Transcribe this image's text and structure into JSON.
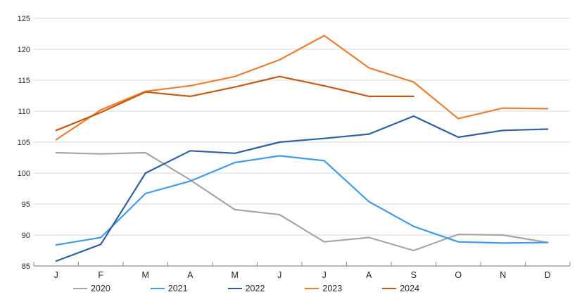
{
  "chart_data": {
    "type": "line",
    "title": "",
    "xlabel": "",
    "ylabel": "",
    "categories": [
      "J",
      "F",
      "M",
      "A",
      "M",
      "J",
      "J",
      "A",
      "S",
      "O",
      "N",
      "D"
    ],
    "series": [
      {
        "name": "2020",
        "color": "#A6A6A6",
        "values": [
          103.3,
          103.1,
          103.3,
          98.9,
          94.1,
          93.3,
          88.9,
          89.6,
          87.5,
          90.1,
          90.0,
          88.8
        ]
      },
      {
        "name": "2021",
        "color": "#3E9BE9",
        "values": [
          88.4,
          89.6,
          96.7,
          98.7,
          101.7,
          102.8,
          102.0,
          95.4,
          91.4,
          88.9,
          88.7,
          88.8
        ]
      },
      {
        "name": "2022",
        "color": "#2E5FA3",
        "values": [
          85.8,
          88.5,
          100.0,
          103.6,
          103.2,
          105.0,
          105.6,
          106.3,
          109.2,
          105.8,
          106.9,
          107.1
        ]
      },
      {
        "name": "2023",
        "color": "#ED7D31",
        "values": [
          105.4,
          110.2,
          113.2,
          114.1,
          115.6,
          118.3,
          122.2,
          117.0,
          114.7,
          108.8,
          110.5,
          110.4
        ]
      },
      {
        "name": "2024",
        "color": "#C55A11",
        "values": [
          106.9,
          109.8,
          113.1,
          112.4,
          113.9,
          115.6,
          114.1,
          112.4,
          112.4,
          null,
          null,
          null
        ]
      }
    ],
    "ylim": [
      85,
      125
    ],
    "yticks": [
      85,
      90,
      95,
      100,
      105,
      110,
      115,
      120,
      125
    ],
    "grid": "horizontal",
    "legend_position": "bottom",
    "grid_color": "#D9D9D9",
    "axis_color": "#8C8C8C",
    "text_color": "#262626"
  }
}
